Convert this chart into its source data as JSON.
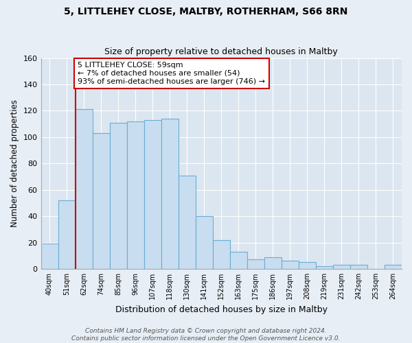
{
  "title": "5, LITTLEHEY CLOSE, MALTBY, ROTHERHAM, S66 8RN",
  "subtitle": "Size of property relative to detached houses in Maltby",
  "xlabel": "Distribution of detached houses by size in Maltby",
  "ylabel": "Number of detached properties",
  "bin_labels": [
    "40sqm",
    "51sqm",
    "62sqm",
    "74sqm",
    "85sqm",
    "96sqm",
    "107sqm",
    "118sqm",
    "130sqm",
    "141sqm",
    "152sqm",
    "163sqm",
    "175sqm",
    "186sqm",
    "197sqm",
    "208sqm",
    "219sqm",
    "231sqm",
    "242sqm",
    "253sqm",
    "264sqm"
  ],
  "bar_heights": [
    19,
    52,
    121,
    103,
    111,
    112,
    113,
    114,
    71,
    40,
    22,
    13,
    7,
    9,
    6,
    5,
    2,
    3,
    3,
    0,
    3
  ],
  "bar_color": "#c8ddef",
  "bar_edge_color": "#6aadd5",
  "highlight_bar_index": 2,
  "highlight_color": "#cc0000",
  "annotation_text": "5 LITTLEHEY CLOSE: 59sqm\n← 7% of detached houses are smaller (54)\n93% of semi-detached houses are larger (746) →",
  "annotation_box_color": "#ffffff",
  "annotation_box_edge": "#cc0000",
  "ylim": [
    0,
    160
  ],
  "yticks": [
    0,
    20,
    40,
    60,
    80,
    100,
    120,
    140,
    160
  ],
  "footer_text": "Contains HM Land Registry data © Crown copyright and database right 2024.\nContains public sector information licensed under the Open Government Licence v3.0.",
  "bg_color": "#e8eef5",
  "grid_color": "#ffffff",
  "plot_bg_color": "#dce6f0"
}
